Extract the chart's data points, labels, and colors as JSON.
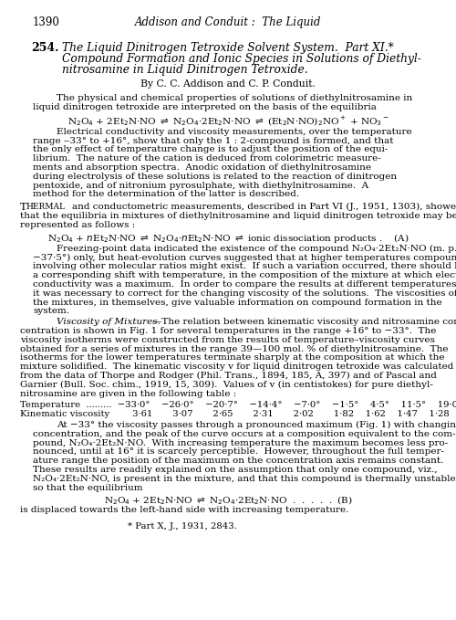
{
  "page_number": "1390",
  "header_italic": "Addison and Conduit :  The Liquid",
  "bg_color": "#ffffff"
}
